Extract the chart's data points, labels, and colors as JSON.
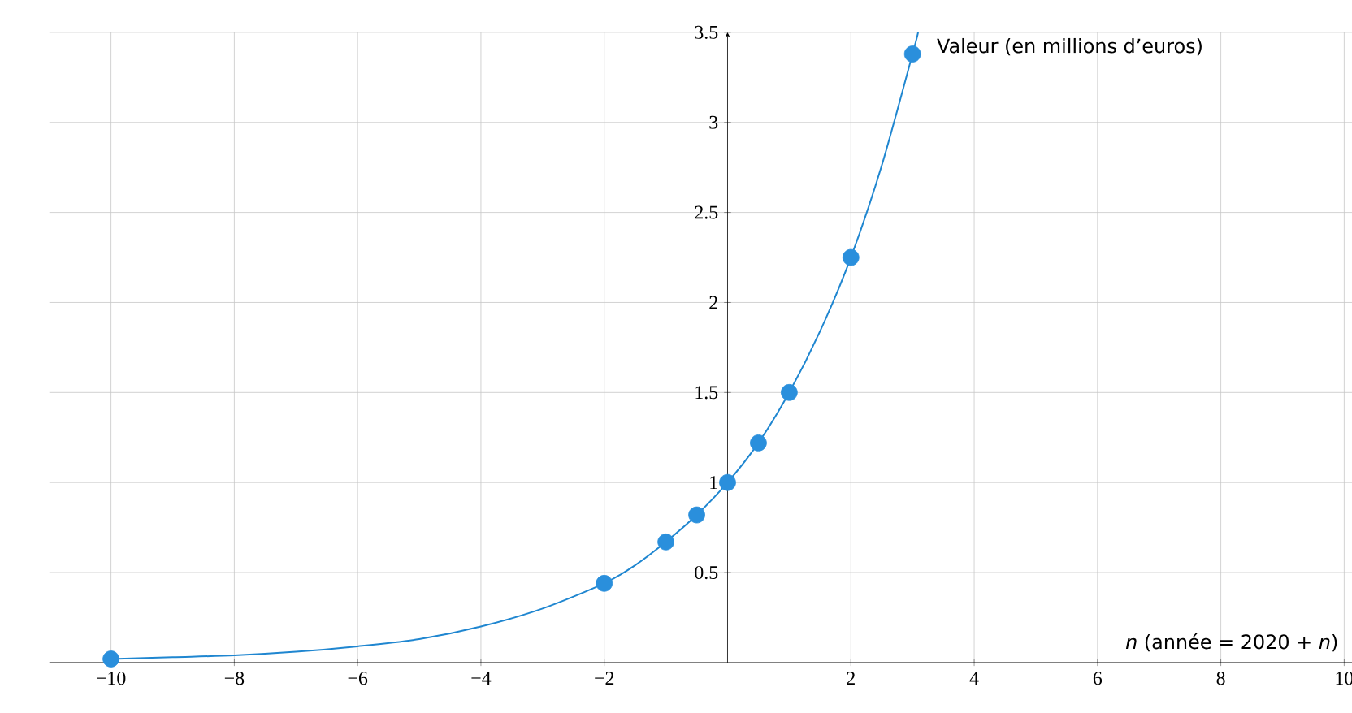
{
  "chart_data": {
    "type": "line",
    "xlabel": "*n* (année = 2020 + *n*)",
    "ylabel": "Valeur (en millions d’euros)",
    "xlim": [
      -11,
      10.4
    ],
    "ylim": [
      0,
      3.5
    ],
    "xticks": [
      {
        "value": -10,
        "label": "−10"
      },
      {
        "value": -8,
        "label": "−8"
      },
      {
        "value": -6,
        "label": "−6"
      },
      {
        "value": -4,
        "label": "−4"
      },
      {
        "value": -2,
        "label": "−2"
      },
      2,
      4,
      6,
      8,
      10
    ],
    "yticks": [
      0.5,
      1,
      1.5,
      2,
      2.5,
      3,
      3.5
    ],
    "grid": true,
    "series": [
      {
        "color": "#1f86d0",
        "marker": "none",
        "x": [
          -10,
          -9,
          -8,
          -7,
          -6,
          -5,
          -4,
          -3,
          -2,
          -1.5,
          -1,
          -0.5,
          0,
          0.5,
          1,
          1.5,
          2,
          2.5,
          3,
          3.09
        ],
        "values": [
          0.02,
          0.03,
          0.04,
          0.06,
          0.09,
          0.13,
          0.2,
          0.3,
          0.44,
          0.54,
          0.67,
          0.82,
          1,
          1.22,
          1.5,
          1.84,
          2.25,
          2.76,
          3.38,
          3.5
        ]
      },
      {
        "type": "scatter",
        "color": "#2a8fdc",
        "marker": "circle",
        "x": [
          -10,
          -2,
          -1,
          -0.5,
          0,
          0.5,
          1,
          2,
          3
        ],
        "values": [
          0.02,
          0.44,
          0.67,
          0.82,
          1,
          1.22,
          1.5,
          2.25,
          3.38
        ]
      }
    ]
  }
}
